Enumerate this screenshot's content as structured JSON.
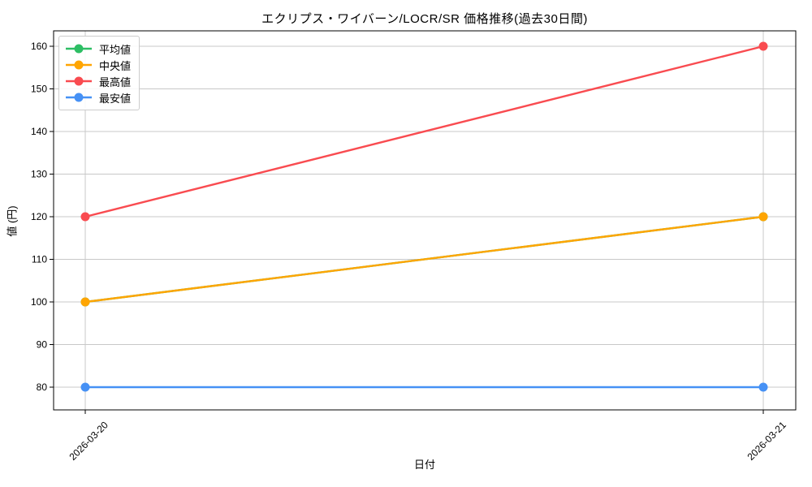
{
  "chart_data": {
    "type": "line",
    "title": "エクリプス・ワイバーン/LOCR/SR 価格推移(過去30日間)",
    "xlabel": "日付",
    "ylabel": "値 (円)",
    "x": [
      "2026-03-20",
      "2026-03-21"
    ],
    "yticks": [
      80,
      90,
      100,
      110,
      120,
      130,
      140,
      150,
      160
    ],
    "ylim": [
      74.7,
      163.6
    ],
    "grid": true,
    "legend_position": "upper left",
    "series": [
      {
        "key": "mean",
        "name": "平均値",
        "color": "#2dbe64",
        "values": [
          100,
          120
        ]
      },
      {
        "key": "median",
        "name": "中央値",
        "color": "#ffa502",
        "values": [
          100,
          120
        ]
      },
      {
        "key": "max",
        "name": "最高値",
        "color": "#f94b50",
        "values": [
          120,
          160
        ]
      },
      {
        "key": "min",
        "name": "最安値",
        "color": "#4691f5",
        "values": [
          80,
          80
        ]
      }
    ],
    "styles": {
      "grid_color": "#c8c8c8",
      "axis_color": "#000000",
      "line_width": 2.4,
      "marker_radius": 5.5
    }
  }
}
